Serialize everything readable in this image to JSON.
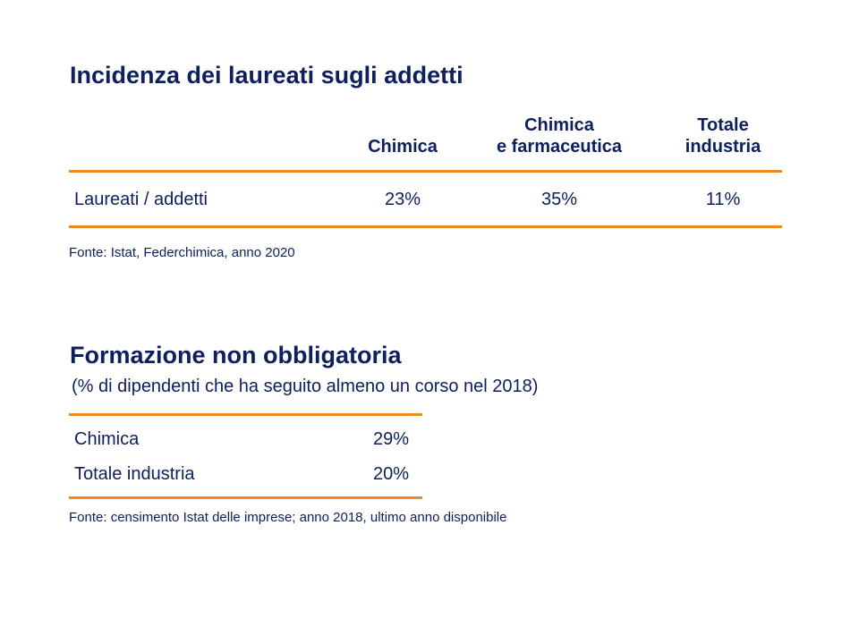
{
  "section1": {
    "title": "Incidenza dei laureati sugli addetti",
    "columns": [
      {
        "line1": "",
        "line2": "Chimica"
      },
      {
        "line1": "Chimica",
        "line2": "e farmaceutica"
      },
      {
        "line1": "Totale",
        "line2": "industria"
      }
    ],
    "row": {
      "label": "Laureati / addetti",
      "values": [
        "23%",
        "35%",
        "11%"
      ]
    },
    "source": "Fonte: Istat, Federchimica, anno 2020"
  },
  "section2": {
    "title": "Formazione non obbligatoria",
    "subtitle": "(% di dipendenti che ha seguito almeno un corso nel 2018)",
    "rows": [
      {
        "label": "Chimica",
        "value": "29%"
      },
      {
        "label": "Totale industria",
        "value": "20%"
      }
    ],
    "source": "Fonte: censimento Istat delle imprese; anno 2018, ultimo anno disponibile"
  },
  "colors": {
    "text": "#0d1f5c",
    "rule": "#f08a1c"
  }
}
